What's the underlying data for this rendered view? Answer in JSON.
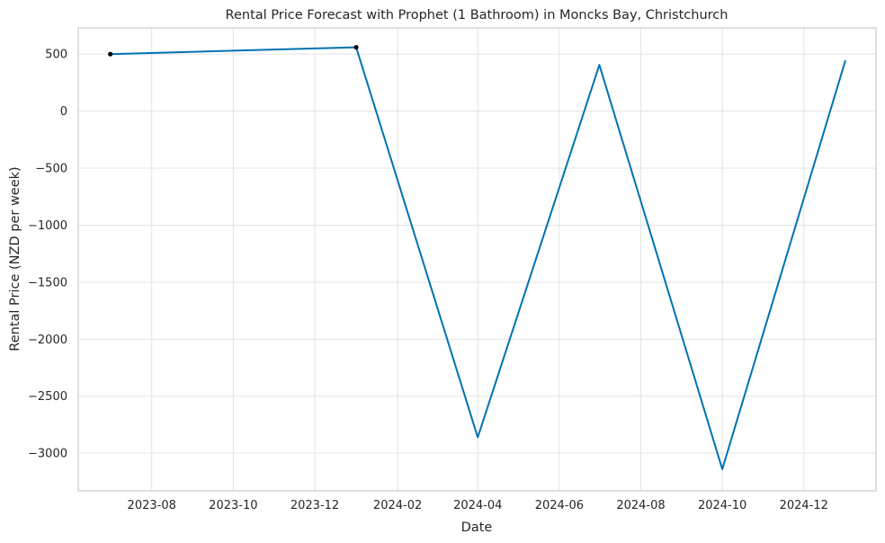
{
  "chart_data": {
    "type": "line",
    "title": "Rental Price Forecast with Prophet (1 Bathroom) in Moncks Bay, Christchurch",
    "xlabel": "Date",
    "ylabel": "Rental Price (NZD per week)",
    "grid": true,
    "xlim": [
      "2023-06-07",
      "2025-01-24"
    ],
    "ylim": [
      -3330,
      730
    ],
    "x_ticks": [
      "2023-08",
      "2023-10",
      "2023-12",
      "2024-02",
      "2024-04",
      "2024-06",
      "2024-08",
      "2024-10",
      "2024-12"
    ],
    "y_ticks": [
      500,
      0,
      -500,
      -1000,
      -1500,
      -2000,
      -2500,
      -3000
    ],
    "y_tick_labels": [
      "500",
      "0",
      "−500",
      "−1000",
      "−1500",
      "−2000",
      "−2500",
      "−3000"
    ],
    "series": [
      {
        "role": "forecast",
        "color": "#0072B2",
        "x": [
          "2023-07-01",
          "2024-01-01",
          "2024-04-01",
          "2024-07-01",
          "2024-10-01",
          "2025-01-01"
        ],
        "y": [
          500,
          560,
          -2860,
          405,
          -3140,
          440
        ]
      },
      {
        "role": "observed",
        "color": "#000000",
        "x": [
          "2023-07-01",
          "2024-01-01"
        ],
        "y": [
          500,
          560
        ]
      }
    ]
  }
}
